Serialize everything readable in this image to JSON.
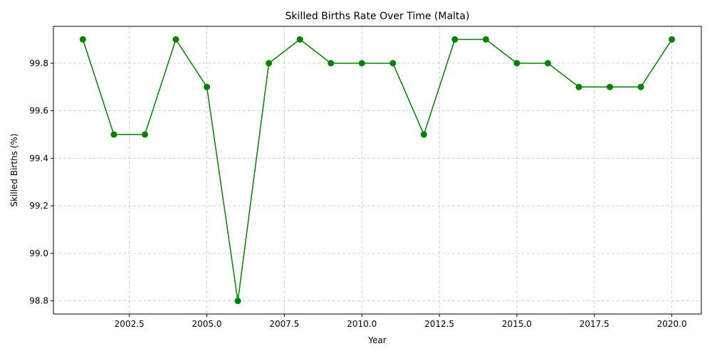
{
  "chart_data": {
    "type": "line",
    "title": "Skilled Births Rate Over Time (Malta)",
    "xlabel": "Year",
    "ylabel": "Skilled Births (%)",
    "xlim": [
      2000.05,
      2020.95
    ],
    "ylim": [
      98.745,
      99.955
    ],
    "xticks": [
      2002.5,
      2005.0,
      2007.5,
      2010.0,
      2012.5,
      2015.0,
      2017.5,
      2020.0
    ],
    "xtick_labels": [
      "2002.5",
      "2005.0",
      "2007.5",
      "2010.0",
      "2012.5",
      "2015.0",
      "2017.5",
      "2020.0"
    ],
    "yticks": [
      98.8,
      99.0,
      99.2,
      99.4,
      99.6,
      99.8
    ],
    "ytick_labels": [
      "98.8",
      "99.0",
      "99.2",
      "99.4",
      "99.6",
      "99.8"
    ],
    "grid": true,
    "series": [
      {
        "color": "#008000",
        "marker": "circle",
        "x": [
          2001,
          2002,
          2003,
          2004,
          2005,
          2006,
          2007,
          2008,
          2009,
          2010,
          2011,
          2012,
          2013,
          2014,
          2015,
          2016,
          2017,
          2018,
          2019,
          2020
        ],
        "y": [
          99.9,
          99.5,
          99.5,
          99.9,
          99.7,
          98.8,
          99.8,
          99.9,
          99.8,
          99.8,
          99.8,
          99.5,
          99.9,
          99.9,
          99.8,
          99.8,
          99.7,
          99.7,
          99.7,
          99.9
        ]
      }
    ]
  }
}
